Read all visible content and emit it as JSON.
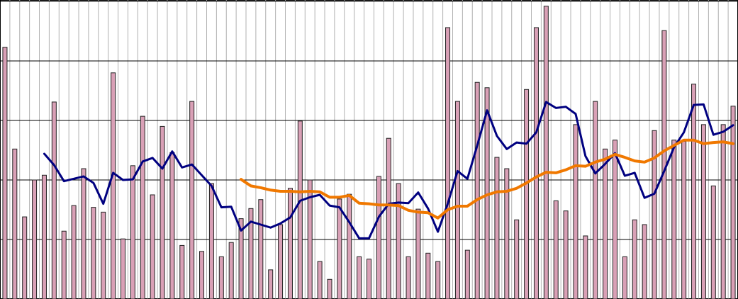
{
  "chart_data": {
    "type": "bar_line",
    "categories": [
      null,
      null,
      null,
      null,
      null,
      null,
      null,
      null,
      null,
      null,
      null,
      null,
      null,
      null,
      null,
      null,
      null,
      null,
      null,
      null,
      null,
      null,
      null,
      null,
      null,
      null,
      null,
      null,
      null,
      null,
      null,
      null,
      null,
      null,
      null,
      null,
      null,
      null,
      null,
      null,
      null,
      null,
      null,
      null,
      null,
      null,
      null,
      null,
      null,
      null,
      null,
      null,
      null,
      null,
      null,
      null,
      null,
      null,
      null,
      null,
      null,
      null,
      null,
      null,
      null,
      null,
      null,
      null,
      null,
      null,
      null,
      null,
      null,
      null,
      null
    ],
    "values": [
      4.23,
      2.52,
      1.38,
      2.0,
      2.08,
      3.31,
      1.14,
      1.57,
      2.19,
      1.54,
      1.46,
      3.8,
      1.01,
      2.24,
      3.07,
      1.75,
      2.9,
      2.46,
      0.9,
      3.32,
      0.8,
      1.94,
      0.71,
      0.95,
      1.35,
      1.52,
      1.67,
      0.49,
      1.25,
      1.86,
      2.99,
      2.0,
      0.63,
      0.33,
      1.68,
      1.76,
      0.71,
      0.67,
      2.06,
      2.7,
      1.94,
      0.71,
      1.51,
      0.77,
      0.63,
      4.56,
      3.32,
      0.82,
      3.64,
      3.55,
      2.38,
      2.19,
      1.33,
      3.52,
      4.56,
      4.92,
      1.65,
      1.48,
      2.93,
      1.06,
      3.32,
      2.52,
      2.67,
      0.71,
      1.33,
      1.25,
      2.83,
      4.51,
      2.67,
      2.65,
      3.61,
      2.93,
      1.9,
      2.93,
      3.24
    ],
    "color": "#d9a0b6",
    "series": [
      {
        "color": "#000080",
        "values": [
          null,
          null,
          null,
          null,
          2.44,
          2.25,
          1.98,
          2.02,
          2.06,
          1.95,
          1.6,
          2.12,
          2.0,
          2.01,
          2.31,
          2.37,
          2.19,
          2.48,
          2.21,
          2.26,
          2.08,
          1.9,
          1.54,
          1.55,
          1.15,
          1.3,
          1.25,
          1.2,
          1.27,
          1.37,
          1.65,
          1.71,
          1.75,
          1.57,
          1.54,
          1.29,
          1.02,
          1.02,
          1.38,
          1.6,
          1.62,
          1.61,
          1.79,
          1.52,
          1.13,
          1.6,
          2.15,
          2.02,
          2.58,
          3.17,
          2.74,
          2.52,
          2.63,
          2.61,
          2.8,
          3.31,
          3.21,
          3.23,
          3.11,
          2.4,
          2.11,
          2.27,
          2.45,
          2.07,
          2.12,
          1.7,
          1.77,
          2.15,
          2.55,
          2.8,
          3.26,
          3.27,
          2.76,
          2.81,
          2.92
        ]
      },
      {
        "color": "#f07800",
        "values": [
          null,
          null,
          null,
          null,
          null,
          null,
          null,
          null,
          null,
          null,
          null,
          null,
          null,
          null,
          null,
          null,
          null,
          null,
          null,
          null,
          null,
          null,
          null,
          null,
          2.01,
          1.9,
          1.87,
          1.83,
          1.81,
          1.81,
          1.8,
          1.81,
          1.8,
          1.71,
          1.71,
          1.74,
          1.61,
          1.6,
          1.58,
          1.58,
          1.57,
          1.49,
          1.46,
          1.45,
          1.36,
          1.5,
          1.56,
          1.56,
          1.67,
          1.75,
          1.8,
          1.81,
          1.86,
          1.95,
          2.05,
          2.13,
          2.12,
          2.17,
          2.24,
          2.23,
          2.3,
          2.35,
          2.43,
          2.38,
          2.32,
          2.3,
          2.37,
          2.49,
          2.58,
          2.67,
          2.67,
          2.61,
          2.63,
          2.64,
          2.61
        ]
      }
    ],
    "ylim": [
      0,
      5
    ],
    "yticks": [
      0,
      1,
      2,
      3,
      4,
      5
    ],
    "grid": true
  }
}
